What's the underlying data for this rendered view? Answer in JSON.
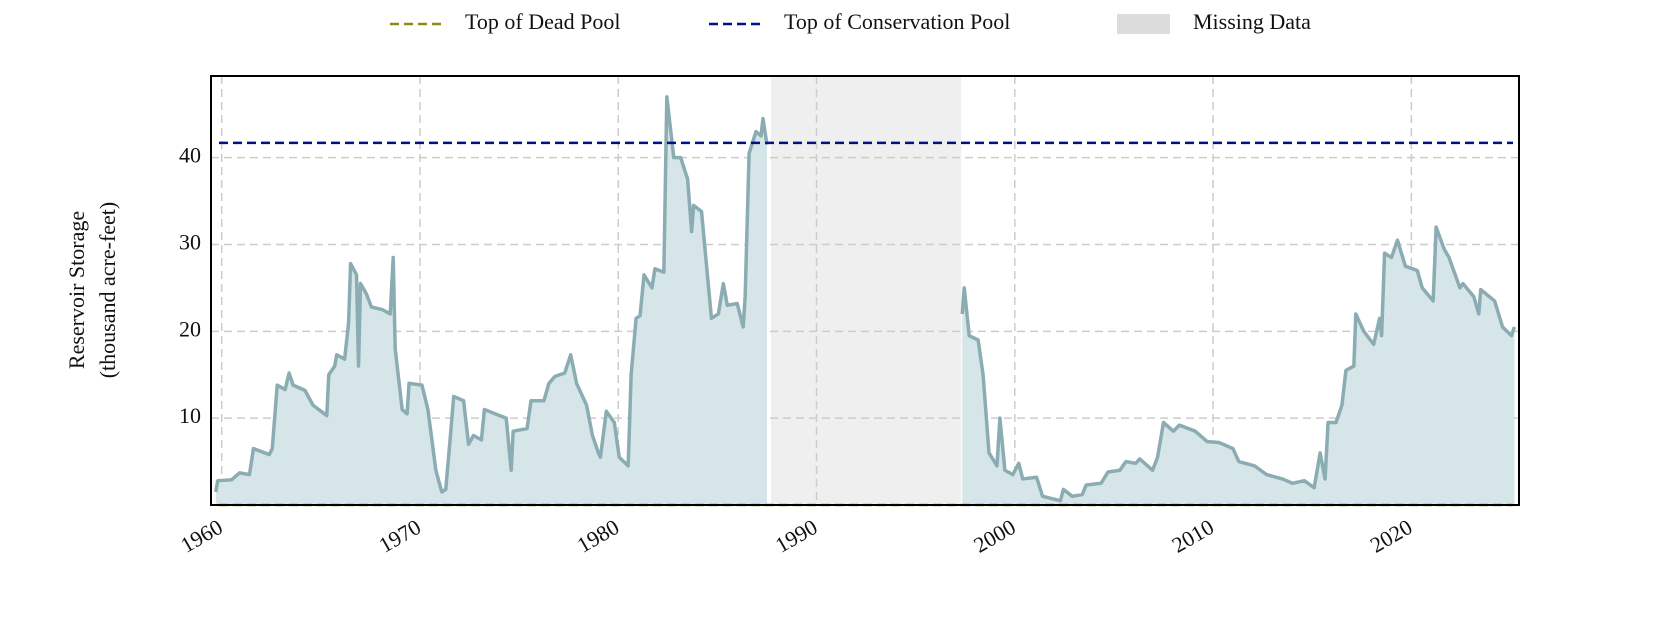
{
  "chart_data": {
    "type": "area",
    "y_label": [
      "Reservoir Storage",
      "(thousand acre-feet)"
    ],
    "color": "#8aacb2",
    "fill_color": "#d5e5e8",
    "x": [
      1959.7,
      1959.8,
      1960.5,
      1960.9,
      1961.4,
      1961.6,
      1962.4,
      1962.55,
      1962.8,
      1963.2,
      1963.4,
      1963.6,
      1964.2,
      1964.6,
      1965.3,
      1965.4,
      1965.7,
      1965.8,
      1966.2,
      1966.4,
      1966.5,
      1966.8,
      1966.9,
      1967.0,
      1967.3,
      1967.55,
      1968.1,
      1968.5,
      1968.65,
      1968.75,
      1969.1,
      1969.35,
      1969.45,
      1970.1,
      1970.4,
      1970.8,
      1971.1,
      1971.3,
      1971.5,
      1971.7,
      1972.2,
      1972.45,
      1972.7,
      1973.1,
      1973.25,
      1973.8,
      1974.35,
      1974.6,
      1974.7,
      1975.4,
      1975.6,
      1976.25,
      1976.5,
      1976.8,
      1977.3,
      1977.6,
      1977.9,
      1978.4,
      1978.7,
      1979.0,
      1979.1,
      1979.4,
      1979.8,
      1980.05,
      1980.5,
      1980.65,
      1980.9,
      1981.1,
      1981.3,
      1981.7,
      1981.85,
      1982.3,
      1982.45,
      1982.8,
      1983.15,
      1983.5,
      1983.7,
      1983.8,
      1984.2,
      1984.7,
      1985.05,
      1985.3,
      1985.5,
      1986.0,
      1986.3,
      1986.4,
      1986.6,
      1986.95,
      1987.2,
      1987.3,
      1987.5,
      1987.7,
      1997.35,
      1997.45,
      1997.7,
      1998.15,
      1998.4,
      1998.7,
      1999.1,
      1999.25,
      1999.5,
      1999.9,
      2000.2,
      2000.4,
      2001.1,
      2001.4,
      2002.3,
      2002.45,
      2002.9,
      2003.4,
      2003.6,
      2004.35,
      2004.7,
      2005.3,
      2005.6,
      2006.1,
      2006.3,
      2006.95,
      2007.2,
      2007.5,
      2008.0,
      2008.3,
      2009.1,
      2009.7,
      2010.3,
      2011.0,
      2011.3,
      2012.1,
      2012.7,
      2013.5,
      2014.0,
      2014.6,
      2015.1,
      2015.4,
      2015.65,
      2015.8,
      2016.2,
      2016.5,
      2016.7,
      2017.1,
      2017.2,
      2017.6,
      2018.1,
      2018.4,
      2018.5,
      2018.65,
      2019.0,
      2019.3,
      2019.7,
      2020.3,
      2020.55,
      2021.1,
      2021.25,
      2021.65,
      2021.9,
      2022.45,
      2022.6,
      2023.15,
      2023.4,
      2023.5,
      2024.2,
      2024.6,
      2025.05,
      2025.2
    ],
    "values": [
      1.5,
      2.8,
      2.9,
      3.7,
      3.5,
      6.5,
      5.8,
      6.5,
      13.8,
      13.3,
      15.2,
      13.8,
      13.2,
      11.5,
      10.3,
      15.0,
      16.0,
      17.3,
      16.8,
      21.0,
      27.8,
      26.5,
      16.0,
      25.5,
      24.3,
      22.8,
      22.5,
      22.0,
      28.5,
      18.0,
      11.0,
      10.5,
      14.0,
      13.8,
      11.0,
      4.0,
      1.5,
      1.8,
      7.0,
      12.5,
      12.0,
      7.0,
      8.0,
      7.5,
      11.0,
      10.5,
      10.0,
      4.0,
      8.5,
      8.8,
      12.0,
      12.0,
      14.0,
      14.8,
      15.2,
      17.3,
      14.0,
      11.5,
      8.0,
      6.0,
      5.5,
      10.8,
      9.5,
      5.5,
      4.5,
      15.0,
      21.5,
      21.8,
      26.5,
      25.0,
      27.2,
      26.8,
      47.0,
      40.0,
      40.0,
      37.5,
      31.5,
      34.5,
      33.8,
      21.5,
      22.0,
      25.5,
      23.0,
      23.2,
      20.5,
      24.0,
      40.5,
      43.0,
      42.5,
      44.5,
      41.5,
      null,
      22.0,
      25.0,
      19.5,
      19.0,
      15.0,
      6.0,
      4.5,
      10.0,
      4.0,
      3.5,
      4.8,
      3.0,
      3.2,
      1.0,
      0.5,
      1.8,
      1.0,
      1.2,
      2.3,
      2.5,
      3.8,
      4.0,
      5.0,
      4.8,
      5.3,
      4.0,
      5.5,
      9.5,
      8.5,
      9.2,
      8.5,
      7.3,
      7.2,
      6.5,
      5.0,
      4.5,
      3.5,
      3.0,
      2.5,
      2.8,
      2.0,
      6.0,
      3.0,
      9.5,
      9.5,
      11.5,
      15.5,
      16.0,
      22.0,
      20.0,
      18.5,
      21.5,
      19.5,
      29.0,
      28.5,
      30.5,
      27.5,
      27.0,
      25.0,
      23.5,
      32.0,
      29.5,
      28.5,
      25.0,
      25.5,
      24.0,
      22.0,
      24.8,
      23.5,
      20.5,
      19.5,
      20.5
    ],
    "hlines": [
      {
        "name": "Top of Dead Pool",
        "value": 0,
        "color": "#8b8b1a"
      },
      {
        "name": "Top of Conservation Pool",
        "value": 41.7,
        "color": "#00108a"
      }
    ],
    "missing": {
      "name": "Missing Data",
      "color": "#dcdcdc",
      "ranges": [
        {
          "start": 1987.7,
          "end": 1997.3
        }
      ]
    },
    "xlim": [
      1959.46,
      2025.43
    ],
    "ylim": [
      0,
      49.4
    ],
    "xticks": [
      1960,
      1970,
      1980,
      1990,
      2000,
      2010,
      2020
    ],
    "yticks": [
      10,
      20,
      30,
      40
    ],
    "grid": true
  }
}
